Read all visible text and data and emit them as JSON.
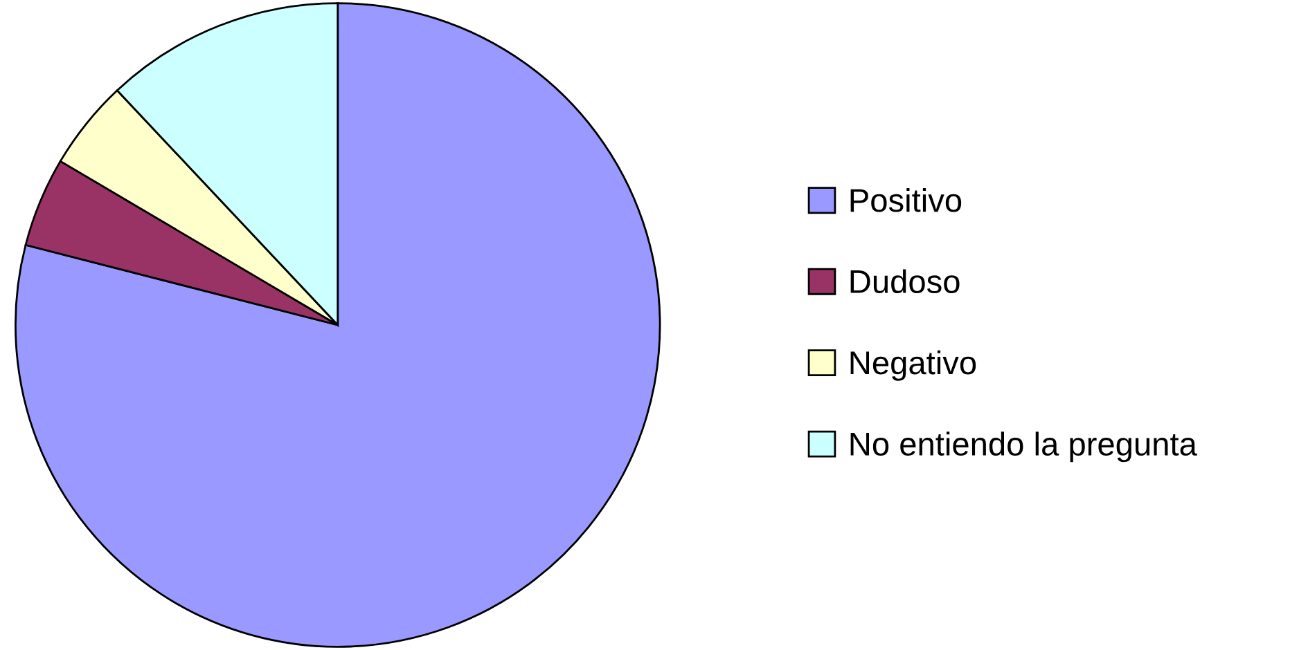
{
  "chart_data": {
    "type": "pie",
    "categories": [
      "Positivo",
      "Dudoso",
      "Negativo",
      "No entiendo la pregunta"
    ],
    "values": [
      79,
      4.5,
      4.5,
      12
    ],
    "colors": [
      "#9999ff",
      "#993366",
      "#ffffcc",
      "#ccffff"
    ],
    "legend": "right"
  }
}
